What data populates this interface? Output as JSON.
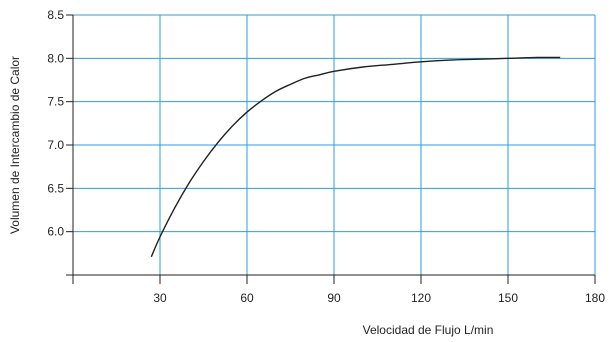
{
  "chart_data": {
    "type": "line",
    "title": "",
    "xlabel": "Velocidad de Flujo L/min",
    "ylabel": "Volumen de Intercambio de Calor",
    "xlim": [
      0,
      180
    ],
    "ylim": [
      5.5,
      8.5
    ],
    "x_ticks": [
      30,
      60,
      90,
      120,
      150,
      180
    ],
    "x_tick_labels": [
      "30",
      "60",
      "90",
      "120",
      "150",
      "180"
    ],
    "y_ticks": [
      6.0,
      6.5,
      7.0,
      7.5,
      8.0,
      8.5
    ],
    "y_tick_labels": [
      "6.0",
      "6.5",
      "7.0",
      "7.5",
      "8.0",
      "8.5"
    ],
    "grid": true,
    "colors": {
      "grid": "#2e9fd8",
      "line": "#231f20",
      "axis": "#231f20"
    },
    "series": [
      {
        "x": [
          27,
          30,
          35,
          40,
          45,
          50,
          55,
          60,
          65,
          70,
          75,
          80,
          85,
          90,
          100,
          110,
          120,
          130,
          140,
          150,
          160,
          168
        ],
        "y": [
          5.71,
          5.94,
          6.27,
          6.56,
          6.81,
          7.03,
          7.22,
          7.38,
          7.51,
          7.62,
          7.7,
          7.77,
          7.81,
          7.85,
          7.9,
          7.93,
          7.96,
          7.98,
          7.99,
          8.0,
          8.01,
          8.01
        ]
      }
    ]
  }
}
